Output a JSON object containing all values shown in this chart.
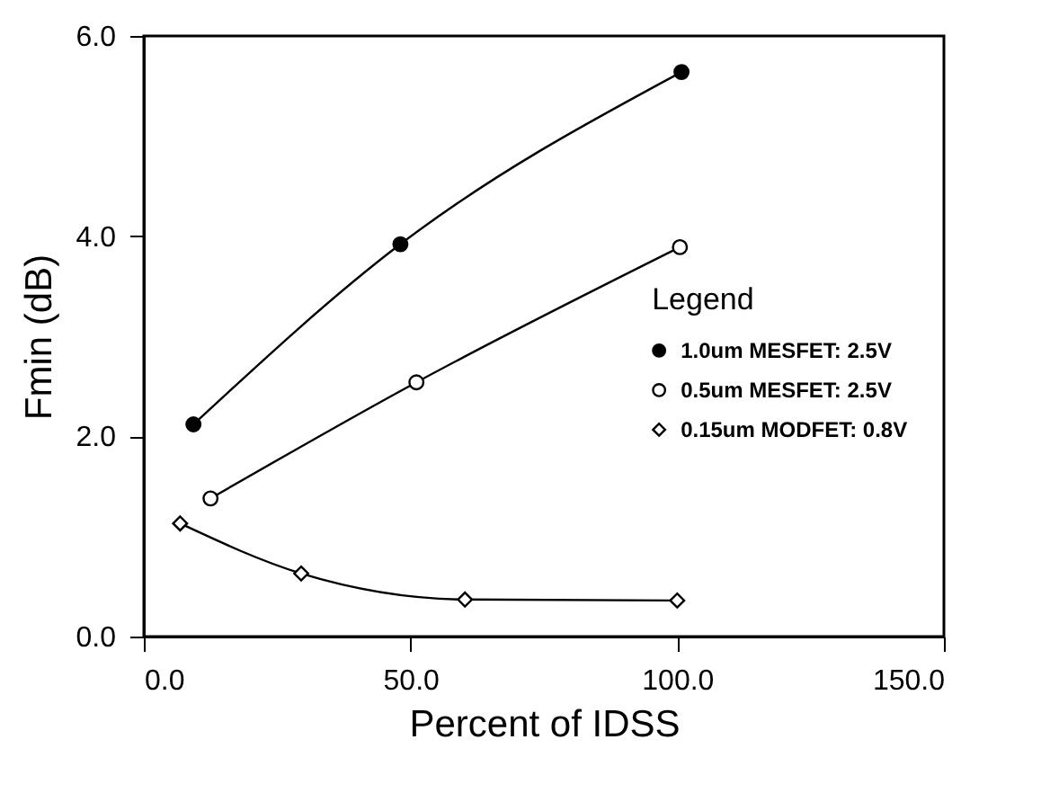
{
  "chart_data": {
    "type": "line",
    "xlabel": "Percent of IDSS",
    "ylabel": "Fmin (dB)",
    "legend_title": "Legend",
    "legend": "right",
    "grid": false,
    "line_style": "solid",
    "xlim": [
      0,
      150
    ],
    "xticks": [
      {
        "value": 0,
        "label": "0.0"
      },
      {
        "value": 50,
        "label": "50.0"
      },
      {
        "value": 100,
        "label": "100.0"
      },
      {
        "value": 150,
        "label": "150.0"
      }
    ],
    "ylim": [
      0,
      6
    ],
    "yticks": [
      {
        "value": 0,
        "label": "0.0"
      },
      {
        "value": 2,
        "label": "2.0"
      },
      {
        "value": 4,
        "label": "4.0"
      },
      {
        "value": 6,
        "label": "6.0"
      }
    ],
    "series": [
      {
        "name": "1.0um MESFET: 2.5V",
        "color": "#000000",
        "marker": "circle",
        "x": [
          9.3,
          48.1,
          100.8
        ],
        "values": [
          2.12,
          3.92,
          5.64
        ]
      },
      {
        "name": "0.5um MESFET: 2.5V",
        "color": "#000000",
        "marker": "open circle",
        "x": [
          12.5,
          51.1,
          100.5
        ],
        "values": [
          1.38,
          2.54,
          3.89
        ]
      },
      {
        "name": "0.15um MODFET: 0.8V",
        "color": "#000000",
        "marker": "diamond",
        "x": [
          6.8,
          29.5,
          60.2,
          100
        ],
        "values": [
          1.13,
          0.63,
          0.37,
          0.36
        ]
      }
    ]
  }
}
